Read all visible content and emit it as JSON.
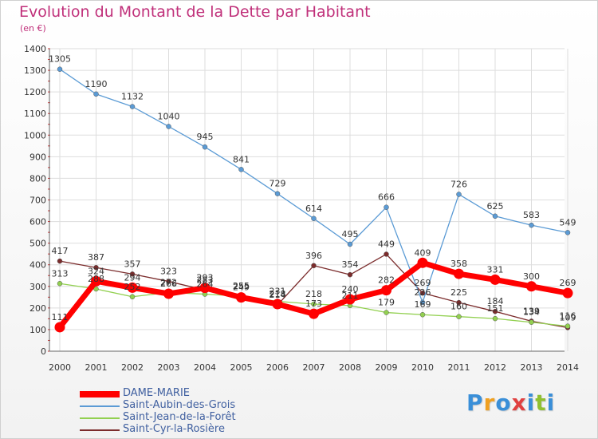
{
  "chart_data": {
    "type": "line",
    "title": "Evolution du Montant de la Dette par Habitant",
    "subtitle": "(en €)",
    "x": [
      "2000",
      "2001",
      "2002",
      "2003",
      "2004",
      "2005",
      "2006",
      "2007",
      "2008",
      "2009",
      "2010",
      "2011",
      "2012",
      "2013",
      "2014"
    ],
    "ylim": [
      0,
      1400
    ],
    "yticks": [
      0,
      100,
      200,
      300,
      400,
      500,
      600,
      700,
      800,
      900,
      1000,
      1100,
      1200,
      1300,
      1400
    ],
    "grid": true,
    "legend_position": "bottom-left",
    "series": [
      {
        "name": "DAME-MARIE",
        "color": "#ff0000",
        "values": [
          111,
          324,
          294,
          266,
          293,
          249,
          218,
          173,
          240,
          282,
          409,
          358,
          331,
          300,
          269
        ]
      },
      {
        "name": "Saint-Aubin-des-Grois",
        "color": "#5b9bd5",
        "values": [
          1305,
          1190,
          1132,
          1040,
          945,
          841,
          729,
          614,
          495,
          666,
          226,
          726,
          625,
          583,
          549
        ]
      },
      {
        "name": "Saint-Jean-de-la-Forêt",
        "color": "#92d050",
        "values": [
          313,
          288,
          252,
          272,
          264,
          255,
          231,
          218,
          211,
          179,
          169,
          160,
          151,
          134,
          116
        ]
      },
      {
        "name": "Saint-Cyr-la-Rosière",
        "color": "#7b2c2c",
        "values": [
          417,
          387,
          357,
          323,
          283,
          255,
          214,
          396,
          354,
          449,
          269,
          225,
          184,
          139,
          109
        ]
      }
    ]
  },
  "logo": {
    "letters": [
      "P",
      "r",
      "o",
      "x",
      "i",
      "t",
      "i"
    ],
    "colors": [
      "#3a8fd8",
      "#f0a020",
      "#3a8fd8",
      "#e04040",
      "#3a8fd8",
      "#90c030",
      "#3a8fd8"
    ]
  }
}
